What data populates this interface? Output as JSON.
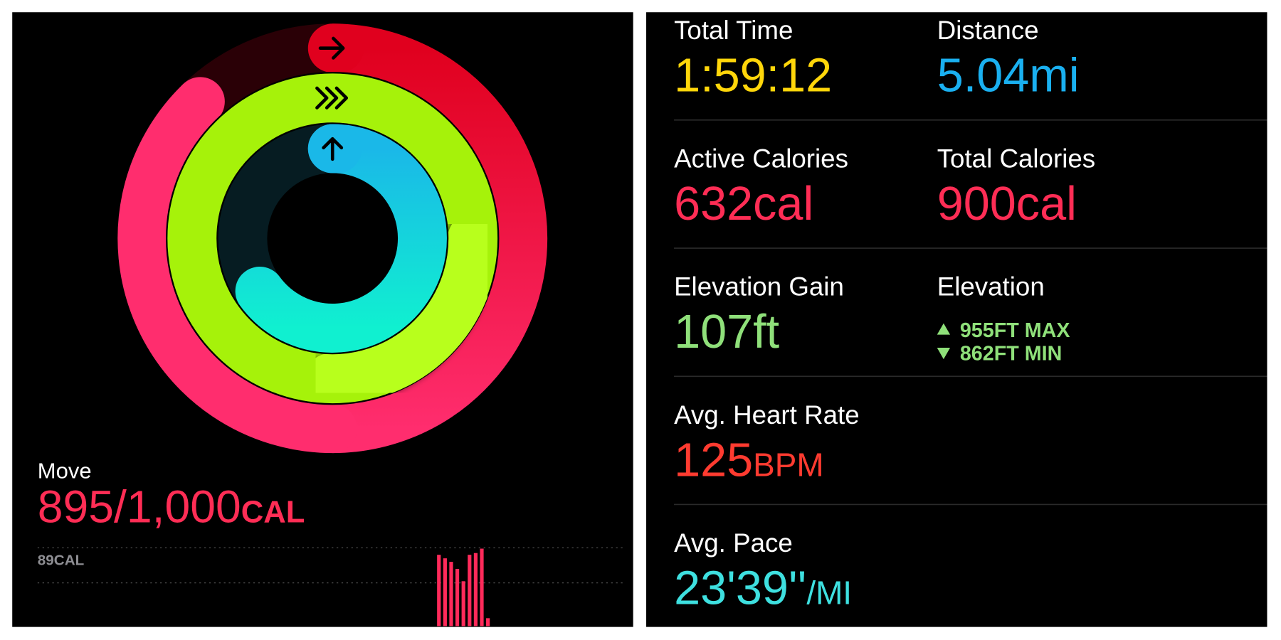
{
  "move": {
    "label": "Move",
    "value": "895/1,000",
    "unit": "CAL",
    "chart": {
      "top_tick": {
        "value": 89,
        "label": "89CAL"
      },
      "values": [
        81,
        77,
        73,
        65,
        51,
        81,
        83,
        88,
        9
      ]
    }
  },
  "metrics": [
    {
      "label": "Total Time",
      "value": "1:59:12"
    },
    {
      "label": "Distance",
      "value": "5.04mi"
    },
    {
      "label": "Active Calories",
      "value": "632cal"
    },
    {
      "label": "Total Calories",
      "value": "900cal"
    },
    {
      "label": "Elevation Gain",
      "value": "107ft"
    },
    {
      "label": "Elevation",
      "max": "955FT MAX",
      "min": "862FT MIN"
    },
    {
      "label": "Avg. Heart Rate",
      "value": "125",
      "unit": "BPM"
    },
    {
      "label": "Avg. Pace",
      "value": "23'39''",
      "unit": "/MI"
    }
  ]
}
